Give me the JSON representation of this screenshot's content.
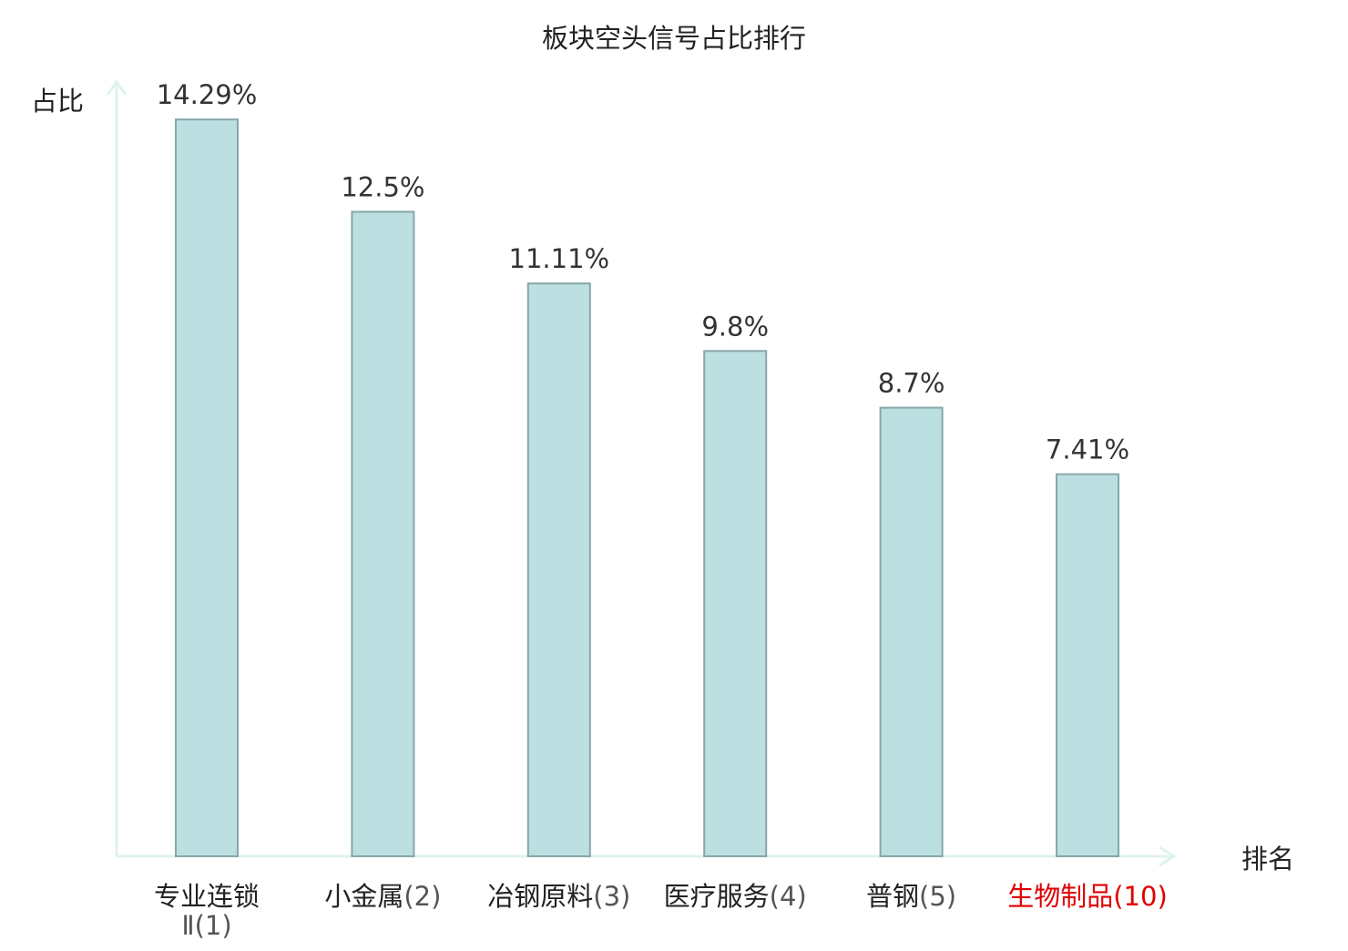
{
  "chart_data": {
    "type": "bar",
    "title": "板块空头信号占比排行",
    "ylabel": "占比",
    "xlabel": "排名",
    "ylim": [
      0,
      15
    ],
    "grid": false,
    "legend": "none",
    "categories": [
      {
        "name": "专业连锁Ⅱ",
        "rank": "(1)",
        "highlight": false
      },
      {
        "name": "小金属",
        "rank": "(2)",
        "highlight": false
      },
      {
        "name": "冶钢原料",
        "rank": "(3)",
        "highlight": false
      },
      {
        "name": "医疗服务",
        "rank": "(4)",
        "highlight": false
      },
      {
        "name": "普钢",
        "rank": "(5)",
        "highlight": false
      },
      {
        "name": "生物制品",
        "rank": "(10)",
        "highlight": true
      }
    ],
    "values": [
      14.29,
      12.5,
      11.11,
      9.8,
      8.7,
      7.41
    ],
    "value_labels": [
      "14.29%",
      "12.5%",
      "11.11%",
      "9.8%",
      "8.7%",
      "7.41%"
    ]
  },
  "colors": {
    "bar_fill": "#bce0e2",
    "bar_stroke": "#86a7a8",
    "axis": "#e0f2ef",
    "text": "#222222",
    "value_text": "#333333",
    "rank_text": "#555555",
    "highlight": "#e00000"
  }
}
